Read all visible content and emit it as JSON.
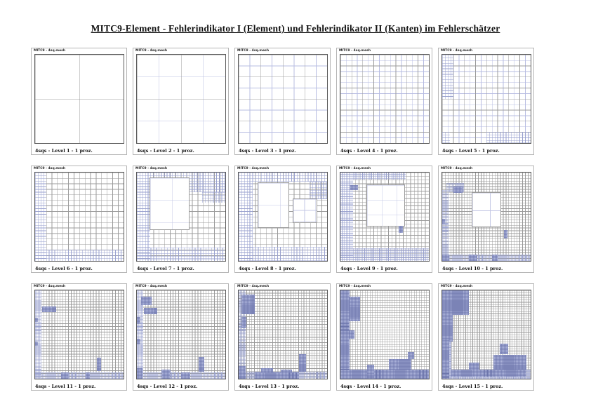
{
  "page": {
    "title": "MITC9-Element - Fehlerindikator I (Element) und Fehlerindikator II (Kanten) im Fehlerschätzer",
    "panel_header": "MITC9 - 4sq.mesh"
  },
  "colors": {
    "major_line": "#9b9b9b",
    "minor_line": "#b7bce2",
    "fine_line": "#9aa2cf",
    "coarse_line": "#c3c7e4",
    "blob_fill": "#aab1d8",
    "blob_line": "#6b74ab",
    "frame": "#5a5a5a"
  },
  "panels": [
    {
      "caption": "4sqs - Level 1 - 1 proz.",
      "base": {
        "major": 2,
        "minor": 0
      },
      "fine": [],
      "coarse": [],
      "blobs": []
    },
    {
      "caption": "4sqs - Level 2 - 1 proz.",
      "base": {
        "major": 2,
        "minor": 4
      },
      "fine": [],
      "coarse": [],
      "blobs": []
    },
    {
      "caption": "4sqs - Level 3 - 1 proz.",
      "base": {
        "major": 4,
        "minor": 8
      },
      "fine": [],
      "coarse": [],
      "blobs": []
    },
    {
      "caption": "4sqs - Level 4 - 1 proz.",
      "base": {
        "major": 8,
        "minor": 16
      },
      "fine": [],
      "coarse": [],
      "blobs": []
    },
    {
      "caption": "4sqs - Level 5 - 1 proz.",
      "base": {
        "major": 8,
        "minor": 16
      },
      "fine": [
        [
          0,
          0,
          0.125,
          0.5,
          32
        ],
        [
          0.5,
          0.875,
          0.5,
          0.125,
          32
        ],
        [
          0,
          0.875,
          0.09,
          0.125,
          32
        ]
      ],
      "coarse": [],
      "blobs": []
    },
    {
      "caption": "4sqs - Level 6 - 1 proz.",
      "base": {
        "major": 16,
        "minor": 0
      },
      "fine": [
        [
          0,
          0,
          0.125,
          1,
          32
        ],
        [
          0,
          0.875,
          1,
          0.125,
          32
        ]
      ],
      "coarse": [],
      "blobs": []
    },
    {
      "caption": "4sqs - Level 7 - 1 proz.",
      "base": {
        "major": 16,
        "minor": 0
      },
      "fine": [
        [
          0,
          0,
          0.15,
          1,
          32
        ],
        [
          0,
          0.85,
          1,
          0.15,
          32
        ],
        [
          0.52,
          0,
          0.48,
          0.22,
          32
        ],
        [
          0.74,
          0.22,
          0.26,
          0.12,
          32
        ],
        [
          0.15,
          0,
          0.37,
          0.06,
          32
        ]
      ],
      "coarse": [
        [
          0.15,
          0.06,
          0.44,
          0.58,
          4
        ]
      ],
      "blobs": []
    },
    {
      "caption": "4sqs - Level 8 - 1 proz.",
      "base": {
        "major": 16,
        "minor": 0
      },
      "fine": [
        [
          0,
          0,
          0.16,
          1,
          32
        ],
        [
          0,
          0.84,
          1,
          0.16,
          32
        ],
        [
          0.16,
          0,
          0.84,
          0.1,
          32
        ],
        [
          0.8,
          0.1,
          0.2,
          0.2,
          32
        ]
      ],
      "coarse": [
        [
          0.22,
          0.12,
          0.34,
          0.5,
          4
        ],
        [
          0.62,
          0.3,
          0.26,
          0.26,
          8
        ]
      ],
      "blobs": []
    },
    {
      "caption": "4sqs - Level 9 - 1 proz.",
      "base": {
        "major": 24,
        "minor": 0
      },
      "fine": [
        [
          0,
          0,
          0.14,
          1,
          48
        ],
        [
          0,
          0.86,
          1,
          0.14,
          48
        ],
        [
          0.14,
          0,
          0.6,
          0.08,
          48
        ]
      ],
      "coarse": [
        [
          0.3,
          0.14,
          0.42,
          0.46,
          6
        ]
      ],
      "blobs": [
        [
          0.1,
          0.14,
          0.1,
          0.06
        ],
        [
          0.66,
          0.6,
          0.05,
          0.08
        ]
      ]
    },
    {
      "caption": "4sqs - Level 10 - 1 proz.",
      "base": {
        "major": 32,
        "minor": 0
      },
      "fine": [
        [
          0,
          0.2,
          0.07,
          0.8,
          64
        ],
        [
          0,
          0.93,
          1,
          0.07,
          64
        ],
        [
          0.05,
          0.12,
          0.2,
          0.1,
          64
        ]
      ],
      "coarse": [
        [
          0.34,
          0.23,
          0.32,
          0.38,
          5
        ]
      ],
      "blobs": [
        [
          0.13,
          0.16,
          0.1,
          0.07
        ],
        [
          0,
          0.52,
          0.03,
          0.06
        ],
        [
          0.7,
          0.65,
          0.035,
          0.1
        ],
        [
          0.3,
          0.93,
          0.1,
          0.07
        ],
        [
          0.56,
          0.93,
          0.07,
          0.07
        ],
        [
          0,
          0.93,
          0.08,
          0.07
        ]
      ]
    },
    {
      "caption": "4sqs - Level 11 - 1 proz.",
      "base": {
        "major": 32,
        "minor": 0
      },
      "fine": [
        [
          0,
          0,
          0.07,
          1,
          64
        ],
        [
          0,
          0.93,
          1,
          0.07,
          64
        ]
      ],
      "coarse": [],
      "blobs": [
        [
          0.08,
          0.18,
          0.16,
          0.07
        ],
        [
          0,
          0.31,
          0.035,
          0.05
        ],
        [
          0,
          0.58,
          0.035,
          0.05
        ],
        [
          0.7,
          0.76,
          0.05,
          0.15
        ],
        [
          0.29,
          0.93,
          0.08,
          0.07
        ],
        [
          0.57,
          0.93,
          0.05,
          0.07
        ]
      ]
    },
    {
      "caption": "4sqs - Level 12 - 1 proz.",
      "base": {
        "major": 32,
        "minor": 0
      },
      "fine": [
        [
          0,
          0,
          0.07,
          1,
          64
        ],
        [
          0,
          0.93,
          1,
          0.07,
          64
        ]
      ],
      "coarse": [],
      "blobs": [
        [
          0.05,
          0.07,
          0.12,
          0.1
        ],
        [
          0.08,
          0.2,
          0.15,
          0.07
        ],
        [
          0,
          0.3,
          0.04,
          0.08
        ],
        [
          0,
          0.55,
          0.04,
          0.06
        ],
        [
          0.7,
          0.75,
          0.06,
          0.17
        ],
        [
          0.28,
          0.9,
          0.1,
          0.1
        ],
        [
          0.5,
          0.93,
          0.1,
          0.07
        ],
        [
          0,
          0.88,
          0.06,
          0.12
        ]
      ]
    },
    {
      "caption": "4sqs - Level 13 - 1 proz.",
      "base": {
        "major": 34,
        "minor": 0
      },
      "fine": [
        [
          0,
          0,
          0.08,
          1,
          64
        ],
        [
          0,
          0.92,
          1,
          0.08,
          64
        ]
      ],
      "coarse": [],
      "blobs": [
        [
          0.03,
          0.05,
          0.15,
          0.22
        ],
        [
          0.03,
          0.3,
          0.06,
          0.12
        ],
        [
          0.68,
          0.72,
          0.08,
          0.2
        ],
        [
          0.25,
          0.88,
          0.14,
          0.12
        ],
        [
          0.48,
          0.9,
          0.12,
          0.1
        ],
        [
          0,
          0.86,
          0.08,
          0.14
        ],
        [
          0.18,
          0.93,
          0.5,
          0.07
        ]
      ]
    },
    {
      "caption": "4sqs - Level 14 - 1 proz.",
      "base": {
        "major": 36,
        "minor": 0
      },
      "fine": [
        [
          0,
          0,
          0.1,
          1,
          72
        ],
        [
          0,
          0.9,
          1,
          0.1,
          72
        ]
      ],
      "coarse": [],
      "blobs": [
        [
          0,
          0,
          0.1,
          1
        ],
        [
          0.1,
          0.07,
          0.12,
          0.28
        ],
        [
          0.1,
          0.45,
          0.06,
          0.1
        ],
        [
          0,
          0.9,
          1,
          0.1
        ],
        [
          0.55,
          0.78,
          0.25,
          0.12
        ],
        [
          0.3,
          0.84,
          0.08,
          0.16
        ],
        [
          0.76,
          0.7,
          0.07,
          0.08
        ]
      ]
    },
    {
      "caption": "4sqs - Level 15 - 1 proz.",
      "base": {
        "major": 38,
        "minor": 0
      },
      "fine": [
        [
          0,
          0,
          0.1,
          1,
          76
        ],
        [
          0,
          0.9,
          1,
          0.1,
          76
        ]
      ],
      "coarse": [],
      "blobs": [
        [
          0,
          0,
          0.3,
          0.28
        ],
        [
          0,
          0.28,
          0.12,
          0.3
        ],
        [
          0,
          0.55,
          0.08,
          0.45
        ],
        [
          0.58,
          0.73,
          0.37,
          0.2
        ],
        [
          0.1,
          0.9,
          0.85,
          0.08
        ],
        [
          0.65,
          0.6,
          0.1,
          0.12
        ],
        [
          0.3,
          0.82,
          0.12,
          0.08
        ]
      ]
    }
  ]
}
